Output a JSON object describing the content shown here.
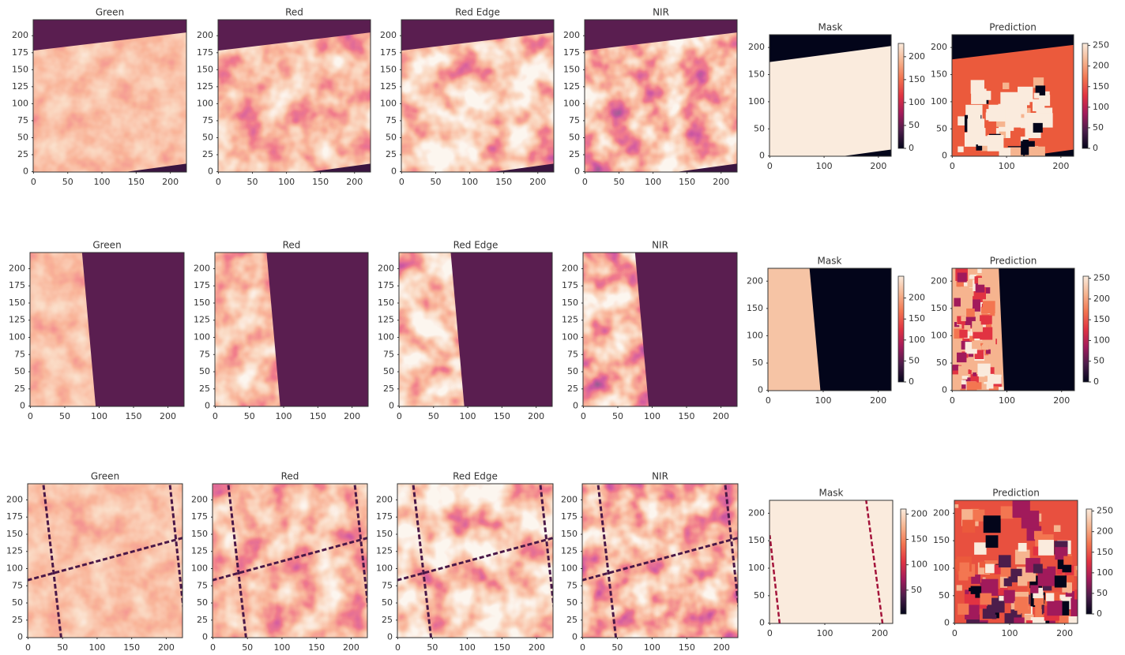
{
  "chart_data": [
    {
      "type": "image",
      "title": "Green",
      "xlim": [
        -0.5,
        223.5
      ],
      "ylim": [
        223.5,
        -0.5
      ],
      "xticks": [
        0,
        50,
        100,
        150,
        200
      ],
      "yticks": [
        0,
        25,
        50,
        75,
        100,
        125,
        150,
        175,
        200
      ]
    },
    {
      "type": "image",
      "title": "Red",
      "xlim": [
        -0.5,
        223.5
      ],
      "ylim": [
        223.5,
        -0.5
      ],
      "xticks": [
        0,
        50,
        100,
        150,
        200
      ],
      "yticks": [
        0,
        25,
        50,
        75,
        100,
        125,
        150,
        175,
        200
      ]
    },
    {
      "type": "image",
      "title": "Red Edge",
      "xlim": [
        -0.5,
        223.5
      ],
      "ylim": [
        223.5,
        -0.5
      ],
      "xticks": [
        0,
        50,
        100,
        150,
        200
      ],
      "yticks": [
        0,
        25,
        50,
        75,
        100,
        125,
        150,
        175,
        200
      ]
    },
    {
      "type": "image",
      "title": "NIR",
      "xlim": [
        -0.5,
        223.5
      ],
      "ylim": [
        223.5,
        -0.5
      ],
      "xticks": [
        0,
        50,
        100,
        150,
        200
      ],
      "yticks": [
        0,
        25,
        50,
        75,
        100,
        125,
        150,
        175,
        200
      ]
    },
    {
      "type": "image",
      "title": "Mask",
      "xlim": [
        -0.5,
        223.5
      ],
      "ylim": [
        223.5,
        -0.5
      ],
      "xticks": [
        0,
        100,
        200
      ],
      "yticks": [
        0,
        50,
        100,
        150,
        200
      ],
      "colorbar": {
        "lim": [
          0,
          229
        ],
        "ticks": [
          0,
          50,
          100,
          150,
          200
        ]
      }
    },
    {
      "type": "image",
      "title": "Prediction",
      "xlim": [
        -0.5,
        223.5
      ],
      "ylim": [
        223.5,
        -0.5
      ],
      "xticks": [
        0,
        100,
        200
      ],
      "yticks": [
        0,
        50,
        100,
        150,
        200
      ],
      "colorbar": {
        "lim": [
          0,
          255
        ],
        "ticks": [
          0,
          50,
          100,
          150,
          200,
          250
        ]
      }
    },
    {
      "type": "image",
      "title": "Green",
      "xlim": [
        -0.5,
        223.5
      ],
      "ylim": [
        223.5,
        -0.5
      ],
      "xticks": [
        0,
        50,
        100,
        150,
        200
      ],
      "yticks": [
        0,
        25,
        50,
        75,
        100,
        125,
        150,
        175,
        200
      ]
    },
    {
      "type": "image",
      "title": "Red",
      "xlim": [
        -0.5,
        223.5
      ],
      "ylim": [
        223.5,
        -0.5
      ],
      "xticks": [
        0,
        50,
        100,
        150,
        200
      ],
      "yticks": [
        0,
        25,
        50,
        75,
        100,
        125,
        150,
        175,
        200
      ]
    },
    {
      "type": "image",
      "title": "Red Edge",
      "xlim": [
        -0.5,
        223.5
      ],
      "ylim": [
        223.5,
        -0.5
      ],
      "xticks": [
        0,
        50,
        100,
        150,
        200
      ],
      "yticks": [
        0,
        25,
        50,
        75,
        100,
        125,
        150,
        175,
        200
      ]
    },
    {
      "type": "image",
      "title": "NIR",
      "xlim": [
        -0.5,
        223.5
      ],
      "ylim": [
        223.5,
        -0.5
      ],
      "xticks": [
        0,
        50,
        100,
        150,
        200
      ],
      "yticks": [
        0,
        25,
        50,
        75,
        100,
        125,
        150,
        175,
        200
      ]
    },
    {
      "type": "image",
      "title": "Mask",
      "xlim": [
        -0.5,
        223.5
      ],
      "ylim": [
        223.5,
        -0.5
      ],
      "xticks": [
        0,
        100,
        200
      ],
      "yticks": [
        0,
        50,
        100,
        150,
        200
      ],
      "colorbar": {
        "lim": [
          0,
          252
        ],
        "ticks": [
          0,
          50,
          100,
          150,
          200
        ]
      }
    },
    {
      "type": "image",
      "title": "Prediction",
      "xlim": [
        -0.5,
        223.5
      ],
      "ylim": [
        223.5,
        -0.5
      ],
      "xticks": [
        0,
        100,
        200
      ],
      "yticks": [
        0,
        50,
        100,
        150,
        200
      ],
      "colorbar": {
        "lim": [
          0,
          255
        ],
        "ticks": [
          0,
          50,
          100,
          150,
          200,
          250
        ]
      }
    },
    {
      "type": "image",
      "title": "Green",
      "xlim": [
        -0.5,
        223.5
      ],
      "ylim": [
        223.5,
        -0.5
      ],
      "xticks": [
        0,
        50,
        100,
        150,
        200
      ],
      "yticks": [
        0,
        25,
        50,
        75,
        100,
        125,
        150,
        175,
        200
      ]
    },
    {
      "type": "image",
      "title": "Red",
      "xlim": [
        -0.5,
        223.5
      ],
      "ylim": [
        223.5,
        -0.5
      ],
      "xticks": [
        0,
        50,
        100,
        150,
        200
      ],
      "yticks": [
        0,
        25,
        50,
        75,
        100,
        125,
        150,
        175,
        200
      ]
    },
    {
      "type": "image",
      "title": "Red Edge",
      "xlim": [
        -0.5,
        223.5
      ],
      "ylim": [
        223.5,
        -0.5
      ],
      "xticks": [
        0,
        50,
        100,
        150,
        200
      ],
      "yticks": [
        0,
        25,
        50,
        75,
        100,
        125,
        150,
        175,
        200
      ]
    },
    {
      "type": "image",
      "title": "NIR",
      "xlim": [
        -0.5,
        223.5
      ],
      "ylim": [
        223.5,
        -0.5
      ],
      "xticks": [
        0,
        50,
        100,
        150,
        200
      ],
      "yticks": [
        0,
        25,
        50,
        75,
        100,
        125,
        150,
        175,
        200
      ]
    },
    {
      "type": "image",
      "title": "Mask",
      "xlim": [
        -0.5,
        223.5
      ],
      "ylim": [
        223.5,
        -0.5
      ],
      "xticks": [
        0,
        100,
        200
      ],
      "yticks": [
        0,
        50,
        100,
        150,
        200
      ],
      "colorbar": {
        "lim": [
          3,
          210
        ],
        "ticks": [
          50,
          100,
          150,
          200
        ]
      }
    },
    {
      "type": "image",
      "title": "Prediction",
      "xlim": [
        -0.5,
        223.5
      ],
      "ylim": [
        223.5,
        -0.5
      ],
      "xticks": [
        0,
        100,
        200
      ],
      "yticks": [
        0,
        50,
        100,
        150,
        200
      ],
      "colorbar": {
        "lim": [
          0,
          255
        ],
        "ticks": [
          0,
          50,
          100,
          150,
          200,
          250
        ]
      }
    }
  ]
}
